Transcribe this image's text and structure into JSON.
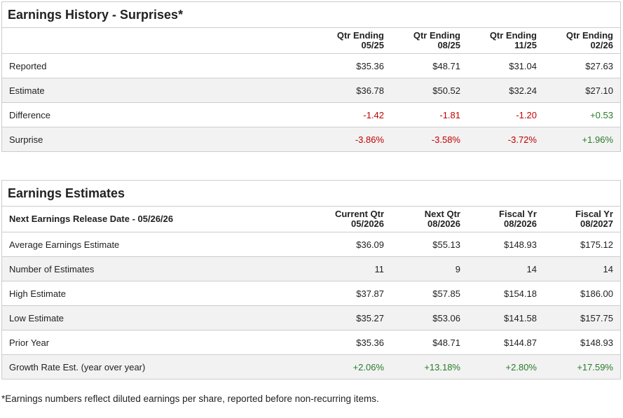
{
  "tables": [
    {
      "title": "Earnings History - Surprises*",
      "columns": [
        [
          "Qtr Ending",
          "05/25"
        ],
        [
          "Qtr Ending",
          "08/25"
        ],
        [
          "Qtr Ending",
          "11/25"
        ],
        [
          "Qtr Ending",
          "02/26"
        ]
      ],
      "rows": [
        {
          "label": "Reported",
          "values": [
            "$35.36",
            "$48.71",
            "$31.04",
            "$27.63"
          ]
        },
        {
          "label": "Estimate",
          "values": [
            "$36.78",
            "$50.52",
            "$32.24",
            "$27.10"
          ]
        },
        {
          "label": "Difference",
          "values": [
            "-1.42",
            "-1.81",
            "-1.20",
            "+0.53"
          ]
        },
        {
          "label": "Surprise",
          "values": [
            "-3.86%",
            "-3.58%",
            "-3.72%",
            "+1.96%"
          ]
        }
      ]
    },
    {
      "title": "Earnings Estimates",
      "corner": "Next Earnings Release Date - 05/26/26",
      "columns": [
        [
          "Current Qtr",
          "05/2026"
        ],
        [
          "Next Qtr",
          "08/2026"
        ],
        [
          "Fiscal Yr",
          "08/2026"
        ],
        [
          "Fiscal Yr",
          "08/2027"
        ]
      ],
      "rows": [
        {
          "label": "Average Earnings Estimate",
          "values": [
            "$36.09",
            "$55.13",
            "$148.93",
            "$175.12"
          ]
        },
        {
          "label": "Number of Estimates",
          "values": [
            "11",
            "9",
            "14",
            "14"
          ]
        },
        {
          "label": "High Estimate",
          "values": [
            "$37.87",
            "$57.85",
            "$154.18",
            "$186.00"
          ]
        },
        {
          "label": "Low Estimate",
          "values": [
            "$35.27",
            "$53.06",
            "$141.58",
            "$157.75"
          ]
        },
        {
          "label": "Prior Year",
          "values": [
            "$35.36",
            "$48.71",
            "$144.87",
            "$148.93"
          ]
        },
        {
          "label": "Growth Rate Est. (year over year)",
          "values": [
            "+2.06%",
            "+13.18%",
            "+2.80%",
            "+17.59%"
          ]
        }
      ]
    }
  ],
  "footnote": "*Earnings numbers reflect diluted earnings per share, reported before non-recurring items."
}
